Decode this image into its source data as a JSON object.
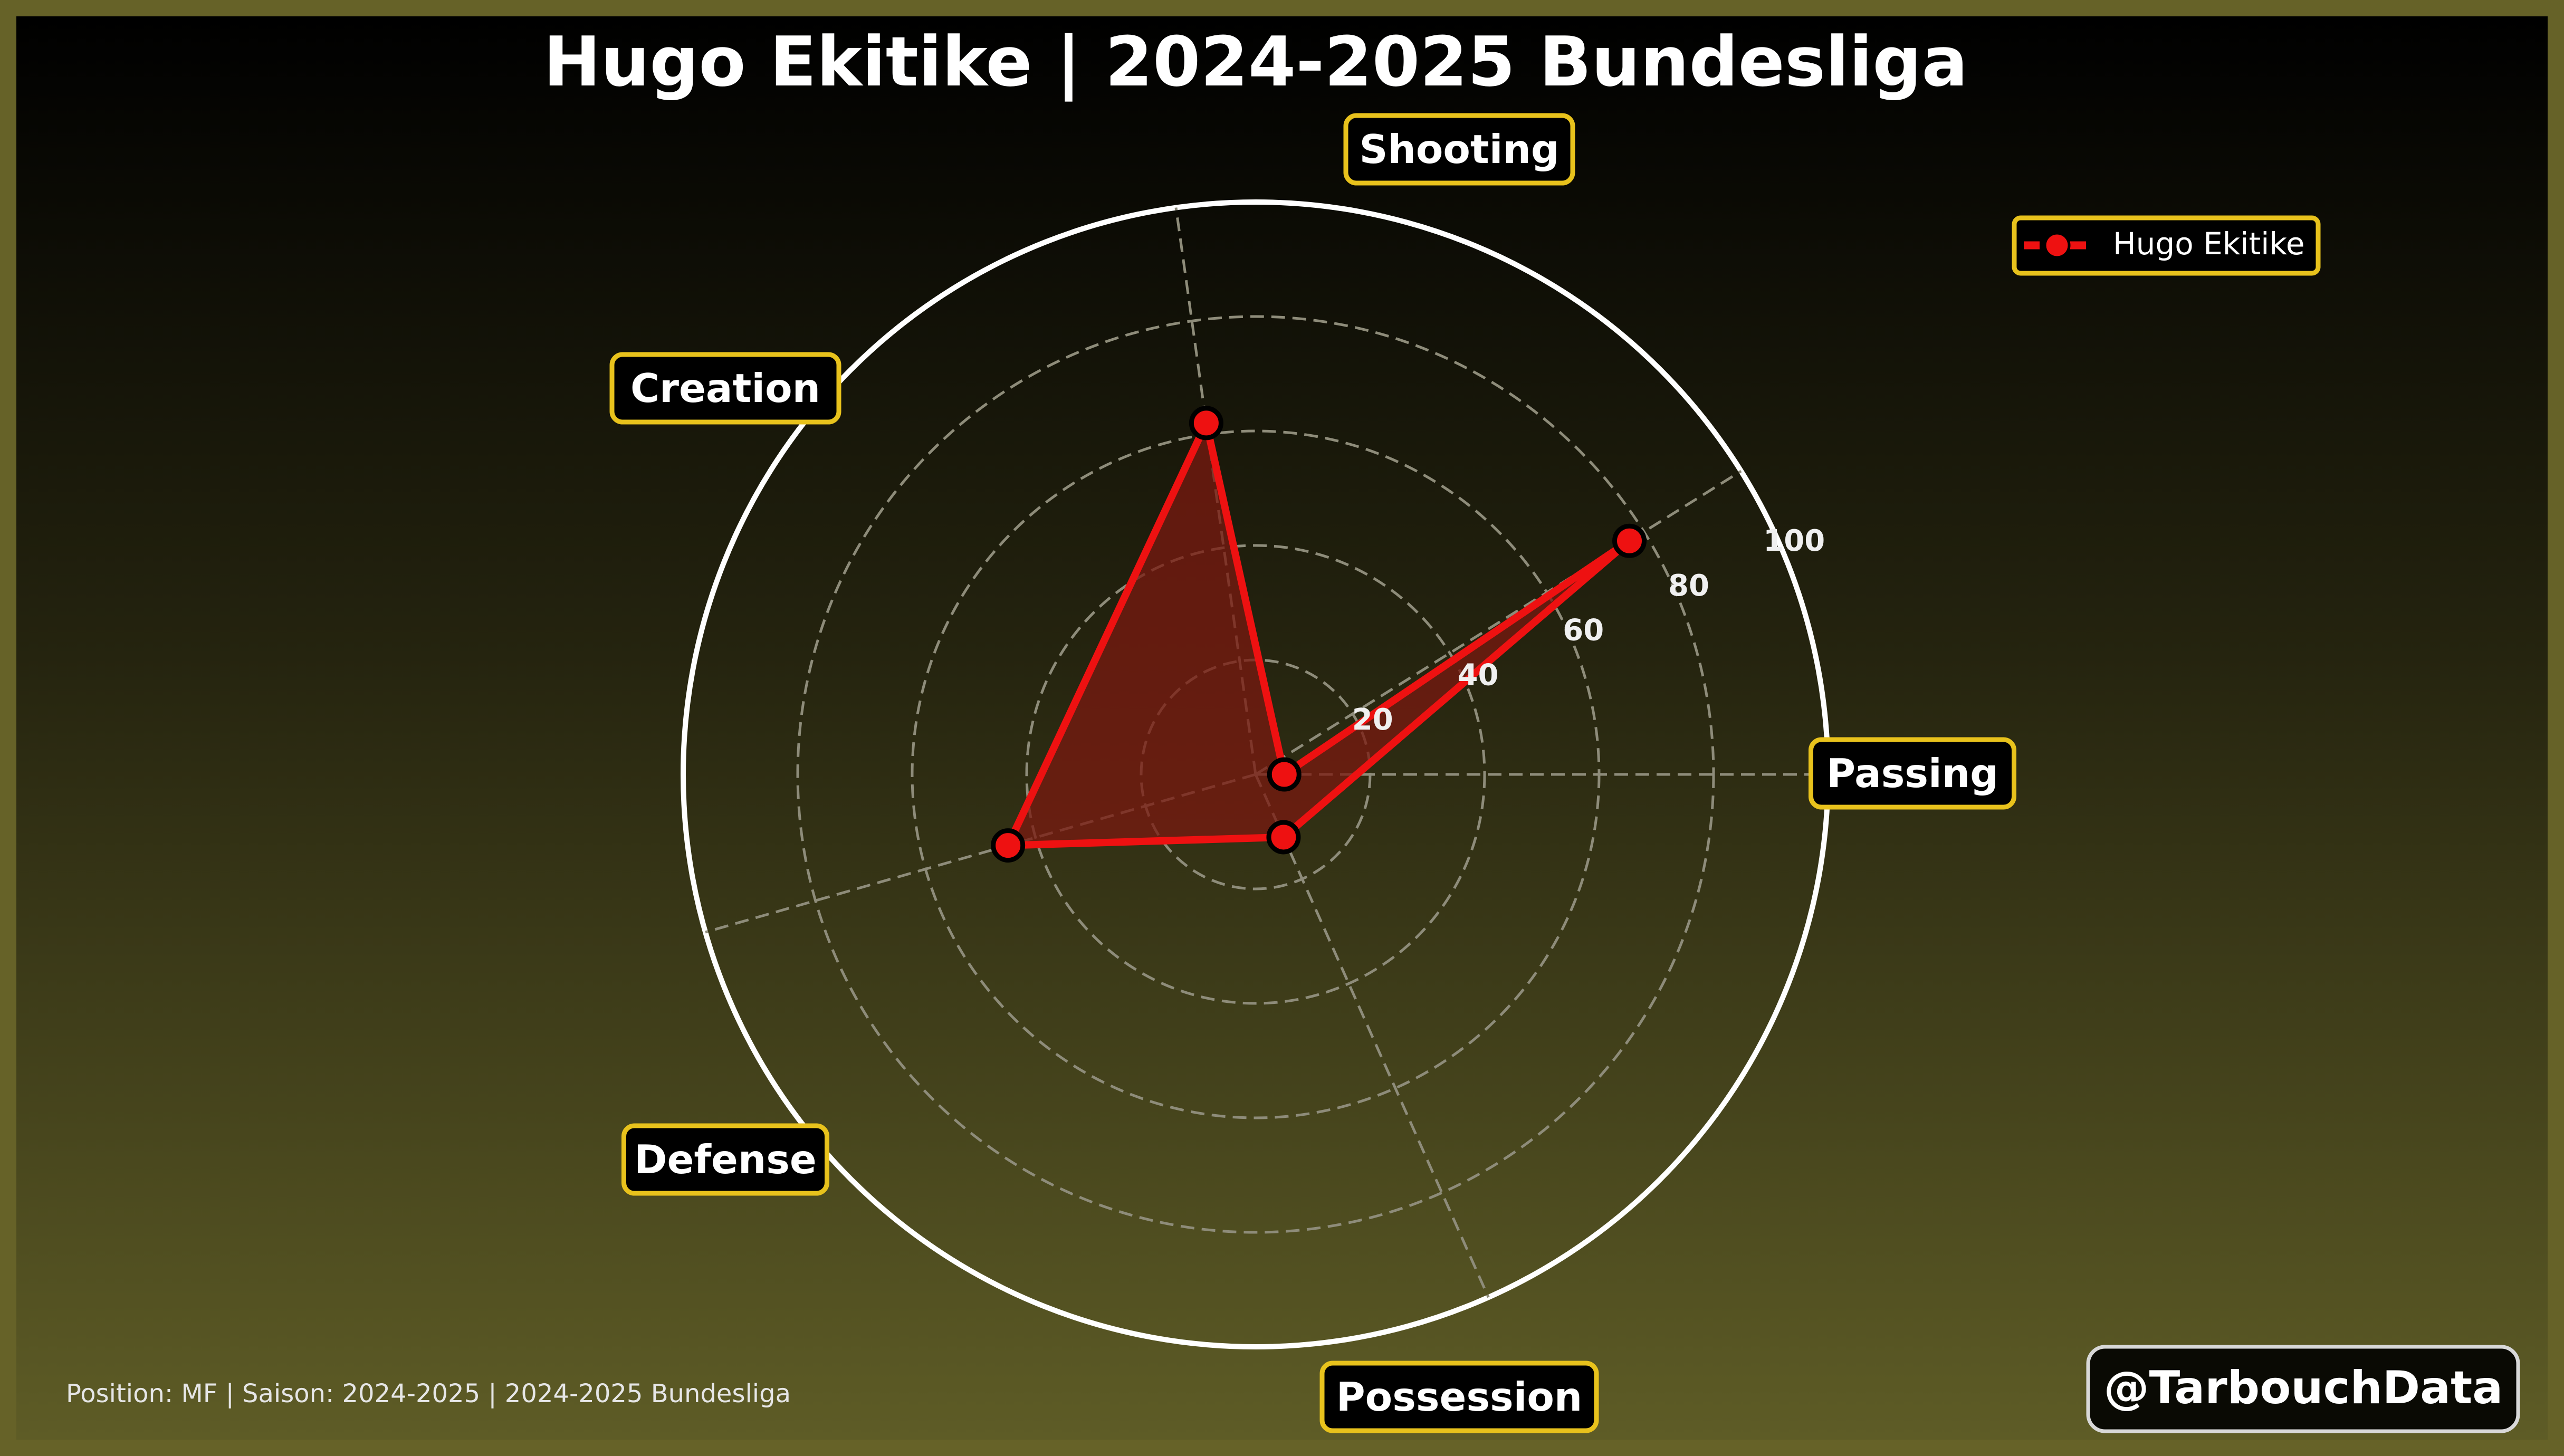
{
  "chart_data": {
    "type": "radar",
    "title": "Hugo Ekitike | 2024-2025 Bundesliga",
    "categories": [
      "Passing",
      "Shooting",
      "Creation",
      "Defense",
      "Possession"
    ],
    "series": [
      {
        "name": "Hugo Ekitike",
        "values": [
          5,
          62,
          45,
          12,
          77
        ]
      }
    ],
    "rlim": [
      0,
      100
    ],
    "radial_ticks": [
      20,
      40,
      60,
      80,
      100
    ],
    "grid": true,
    "legend": "top-right"
  },
  "footer": {
    "info": "Position: MF | Saison: 2024-2025 | 2024-2025 Bundesliga",
    "watermark": "@TarbouchData"
  },
  "colors": {
    "series": "#ee1111",
    "fill": "#7a1a10",
    "label_border": "#e8c21c",
    "frame": "#666228"
  }
}
